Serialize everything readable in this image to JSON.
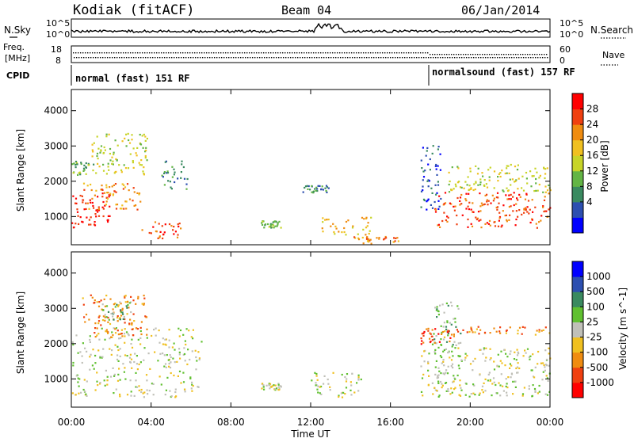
{
  "header": {
    "station": "Kodiak (fitACF)",
    "beam": "Beam 04",
    "date": "06/Jan/2014"
  },
  "top_panels": {
    "nsky_label": "N.Sky",
    "nsearch_label": "N.Search",
    "nsky_ticks": [
      "10^5",
      "10^0"
    ],
    "nsearch_ticks": [
      "10^5",
      "10^0"
    ],
    "freq_label_1": "Freq.",
    "freq_label_2": "[MHz]",
    "freq_ticks": [
      "18",
      "8"
    ],
    "nave_label": "Nave",
    "nave_ticks": [
      "60",
      "0"
    ],
    "cpid_label": "CPID",
    "cpid_segments": [
      {
        "text": "normal (fast) 151 RF",
        "start_hour": 0
      },
      {
        "text": "normalsound (fast) 157 RF",
        "start_hour": 18
      }
    ]
  },
  "chart_data": [
    {
      "type": "heatmap",
      "name": "power-panel",
      "ylabel": "Slant Range [km]",
      "xlabel": "",
      "xlim": [
        0,
        24
      ],
      "ylim": [
        200,
        4600
      ],
      "x_ticks": [
        "00:00",
        "04:00",
        "08:00",
        "12:00",
        "16:00",
        "20:00",
        "00:00"
      ],
      "y_ticks": [
        1000,
        2000,
        3000,
        4000
      ],
      "colorbar": {
        "label": "Power [dB]",
        "ticks": [
          "28",
          "24",
          "20",
          "16",
          "12",
          "8",
          "4"
        ],
        "colors": [
          "#0000ff",
          "#2d4fb0",
          "#3a8a60",
          "#63b545",
          "#c7d428",
          "#f0c020",
          "#f08c10",
          "#f04010",
          "#ff0000"
        ]
      },
      "regions": [
        {
          "t0": 0.0,
          "t1": 2.0,
          "r0": 700,
          "r1": 1700,
          "level": 8
        },
        {
          "t0": 0.5,
          "t1": 3.5,
          "r0": 1200,
          "r1": 2000,
          "level": 6
        },
        {
          "t0": 1.0,
          "t1": 3.8,
          "r0": 2200,
          "r1": 3400,
          "level": 4
        },
        {
          "t0": 0.0,
          "t1": 1.2,
          "r0": 2200,
          "r1": 2600,
          "level": 3
        },
        {
          "t0": 3.5,
          "t1": 5.5,
          "r0": 400,
          "r1": 900,
          "level": 7
        },
        {
          "t0": 4.5,
          "t1": 5.8,
          "r0": 1800,
          "r1": 2600,
          "level": 2
        },
        {
          "t0": 9.5,
          "t1": 10.5,
          "r0": 700,
          "r1": 900,
          "level": 3
        },
        {
          "t0": 12.5,
          "t1": 15.0,
          "r0": 500,
          "r1": 1000,
          "level": 5
        },
        {
          "t0": 14.0,
          "t1": 16.5,
          "r0": 250,
          "r1": 450,
          "level": 6
        },
        {
          "t0": 11.5,
          "t1": 13.0,
          "r0": 1700,
          "r1": 1900,
          "level": 2
        },
        {
          "t0": 17.5,
          "t1": 18.5,
          "r0": 1200,
          "r1": 3100,
          "level": 1
        },
        {
          "t0": 18.2,
          "t1": 24.0,
          "r0": 700,
          "r1": 1700,
          "level": 7
        },
        {
          "t0": 18.8,
          "t1": 24.0,
          "r0": 1700,
          "r1": 2500,
          "level": 4
        }
      ]
    },
    {
      "type": "heatmap",
      "name": "velocity-panel",
      "ylabel": "Slant Range [km]",
      "xlabel": "Time UT",
      "xlim": [
        0,
        24
      ],
      "ylim": [
        200,
        4600
      ],
      "x_ticks": [
        "00:00",
        "04:00",
        "08:00",
        "12:00",
        "16:00",
        "20:00",
        "00:00"
      ],
      "y_ticks": [
        1000,
        2000,
        3000,
        4000
      ],
      "colorbar": {
        "label": "Velocity [m s^-1]",
        "ticks": [
          "1000",
          "500",
          "100",
          "25",
          "-25",
          "-100",
          "-500",
          "-1000"
        ],
        "colors": [
          "#ff0000",
          "#f04010",
          "#f08c10",
          "#f0c020",
          "#c0c0b8",
          "#60c030",
          "#3a8a60",
          "#2d4fb0",
          "#0000ff"
        ]
      },
      "regions": [
        {
          "t0": 0.0,
          "t1": 6.5,
          "r0": 500,
          "r1": 2500,
          "level": 4
        },
        {
          "t0": 0.5,
          "t1": 3.8,
          "r0": 2200,
          "r1": 3400,
          "level": 2
        },
        {
          "t0": 1.5,
          "t1": 3.0,
          "r0": 2700,
          "r1": 3200,
          "level": 5
        },
        {
          "t0": 12.0,
          "t1": 14.5,
          "r0": 500,
          "r1": 1200,
          "level": 4
        },
        {
          "t0": 9.5,
          "t1": 10.5,
          "r0": 700,
          "r1": 900,
          "level": 4
        },
        {
          "t0": 17.5,
          "t1": 24.0,
          "r0": 500,
          "r1": 1900,
          "level": 4
        },
        {
          "t0": 18.0,
          "t1": 19.5,
          "r0": 1900,
          "r1": 3200,
          "level": 5
        },
        {
          "t0": 18.5,
          "t1": 24.0,
          "r0": 2200,
          "r1": 2500,
          "level": 2
        },
        {
          "t0": 17.5,
          "t1": 19.0,
          "r0": 2000,
          "r1": 2500,
          "level": 1
        }
      ]
    }
  ]
}
